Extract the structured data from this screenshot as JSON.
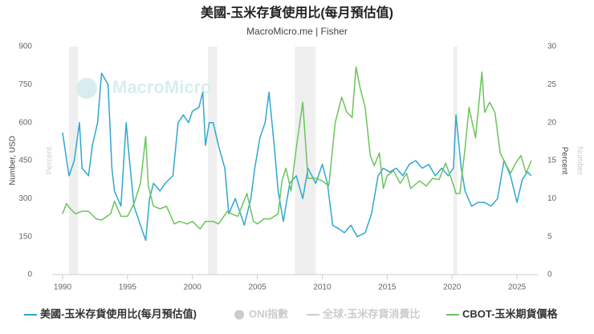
{
  "chart_data": {
    "type": "line",
    "title": "美國-玉米存貨使用比(每月預估值)",
    "subtitle": "MacroMicro.me | Fisher",
    "watermark": "MacroMicro",
    "ylabel": "Number, USD",
    "ylabel_inactive": "Percent",
    "y2label": "Percent",
    "y2label_inactive": "Number",
    "xlim": [
      1989.2,
      2026.6
    ],
    "xticks": [
      1990,
      1995,
      2000,
      2005,
      2010,
      2015,
      2020,
      2025
    ],
    "ylim": [
      0,
      900
    ],
    "yticks": [
      0,
      150,
      300,
      450,
      600,
      750,
      900
    ],
    "y2lim": [
      0,
      30
    ],
    "y2ticks": [
      0,
      5,
      10,
      15,
      20,
      25,
      30
    ],
    "shaded_periods": [
      [
        1990.5,
        1991.2
      ],
      [
        2001.2,
        2001.9
      ],
      [
        2007.9,
        2009.5
      ],
      [
        2020.1,
        2020.4
      ]
    ],
    "grid": false,
    "legend": "bottom",
    "series": [
      {
        "name": "美國-玉米存貨使用比(每月預估值)",
        "color": "#2fa8cf",
        "axis": "y2",
        "x": [
          1990,
          1990.5,
          1990.9,
          1991.3,
          1991.5,
          1992,
          1992.3,
          1992.7,
          1993,
          1993.5,
          1993.8,
          1994,
          1994.5,
          1994.9,
          1995.1,
          1995.5,
          1996,
          1996.4,
          1996.7,
          1997,
          1997.5,
          1997.9,
          1998.5,
          1998.9,
          1999.3,
          1999.7,
          2000,
          2000.5,
          2000.8,
          2001,
          2001.3,
          2001.6,
          2002,
          2002.5,
          2002.8,
          2003.3,
          2003.7,
          2004,
          2004.5,
          2004.8,
          2005.2,
          2005.6,
          2005.9,
          2006.3,
          2006.6,
          2007,
          2007.5,
          2008,
          2008.5,
          2008.9,
          2009.5,
          2010,
          2010.4,
          2010.8,
          2011.3,
          2011.7,
          2012.2,
          2012.7,
          2013.3,
          2013.8,
          2014.3,
          2014.7,
          2015.2,
          2015.7,
          2016.2,
          2016.7,
          2017.2,
          2017.7,
          2018.2,
          2018.7,
          2019.2,
          2019.7,
          2020.1,
          2020.3,
          2020.7,
          2021,
          2021.5,
          2022,
          2022.5,
          2023,
          2023.5,
          2024,
          2024.5,
          2025,
          2025.4,
          2025.8,
          2026.1
        ],
        "values": [
          18.7,
          13,
          15,
          20,
          14,
          13,
          17,
          20,
          26.5,
          25,
          14,
          11,
          9,
          20,
          16,
          9,
          6.5,
          4.5,
          10,
          12,
          11,
          12,
          13,
          20,
          21,
          20,
          21.5,
          22,
          24,
          17,
          20,
          20,
          17,
          14,
          8,
          10,
          8,
          6.5,
          10,
          14,
          18,
          20,
          24,
          17,
          11,
          7,
          12,
          13,
          10,
          14,
          12,
          14.5,
          12,
          6.5,
          6,
          5.5,
          6.5,
          5,
          5.5,
          8,
          13,
          14,
          13.5,
          14,
          13,
          14.5,
          15,
          14,
          14.5,
          13,
          14,
          13,
          14,
          21,
          14,
          11,
          9,
          9.5,
          9.5,
          9,
          10,
          15,
          13,
          9.5,
          12.5,
          13.5,
          13
        ]
      },
      {
        "name": "CBOT-玉米期貨價格",
        "color": "#6cc45c",
        "axis": "y",
        "x": [
          1990,
          1990.3,
          1990.6,
          1991,
          1991.5,
          1992,
          1992.6,
          1993,
          1993.7,
          1994,
          1994.5,
          1995,
          1995.5,
          1996,
          1996.4,
          1996.6,
          1997,
          1997.5,
          1998,
          1998.6,
          1999,
          1999.6,
          2000,
          2000.6,
          2001,
          2001.6,
          2002,
          2002.7,
          2003,
          2003.5,
          2004.2,
          2004.7,
          2005,
          2005.5,
          2006,
          2006.6,
          2006.9,
          2007.2,
          2007.6,
          2008,
          2008.5,
          2008.9,
          2009.5,
          2010,
          2010.5,
          2011,
          2011.5,
          2011.9,
          2012.3,
          2012.6,
          2012.9,
          2013.3,
          2013.7,
          2014,
          2014.4,
          2014.7,
          2015,
          2015.5,
          2016,
          2016.5,
          2016.8,
          2017.5,
          2018,
          2018.5,
          2019,
          2019.5,
          2019.9,
          2020.3,
          2020.6,
          2021,
          2021.3,
          2021.8,
          2022.3,
          2022.5,
          2022.9,
          2023.3,
          2023.7,
          2024,
          2024.5,
          2024.9,
          2025.3,
          2025.7,
          2026.1
        ],
        "values": [
          240,
          280,
          260,
          240,
          250,
          250,
          220,
          215,
          240,
          290,
          230,
          230,
          280,
          360,
          545,
          350,
          270,
          260,
          270,
          200,
          210,
          200,
          210,
          180,
          210,
          210,
          200,
          250,
          240,
          230,
          320,
          210,
          200,
          220,
          220,
          240,
          370,
          420,
          330,
          500,
          680,
          380,
          380,
          370,
          350,
          600,
          700,
          640,
          620,
          820,
          740,
          660,
          470,
          430,
          480,
          340,
          390,
          410,
          360,
          400,
          340,
          370,
          350,
          380,
          375,
          440,
          385,
          320,
          320,
          500,
          660,
          540,
          800,
          640,
          680,
          640,
          480,
          450,
          400,
          440,
          470,
          400,
          450
        ]
      }
    ],
    "inactive_series": [
      {
        "name": "ONI指數",
        "color": "#cccccc",
        "marker": "circle"
      },
      {
        "name": "全球-玉米存貨消費比",
        "color": "#cccccc",
        "marker": "line"
      }
    ]
  }
}
